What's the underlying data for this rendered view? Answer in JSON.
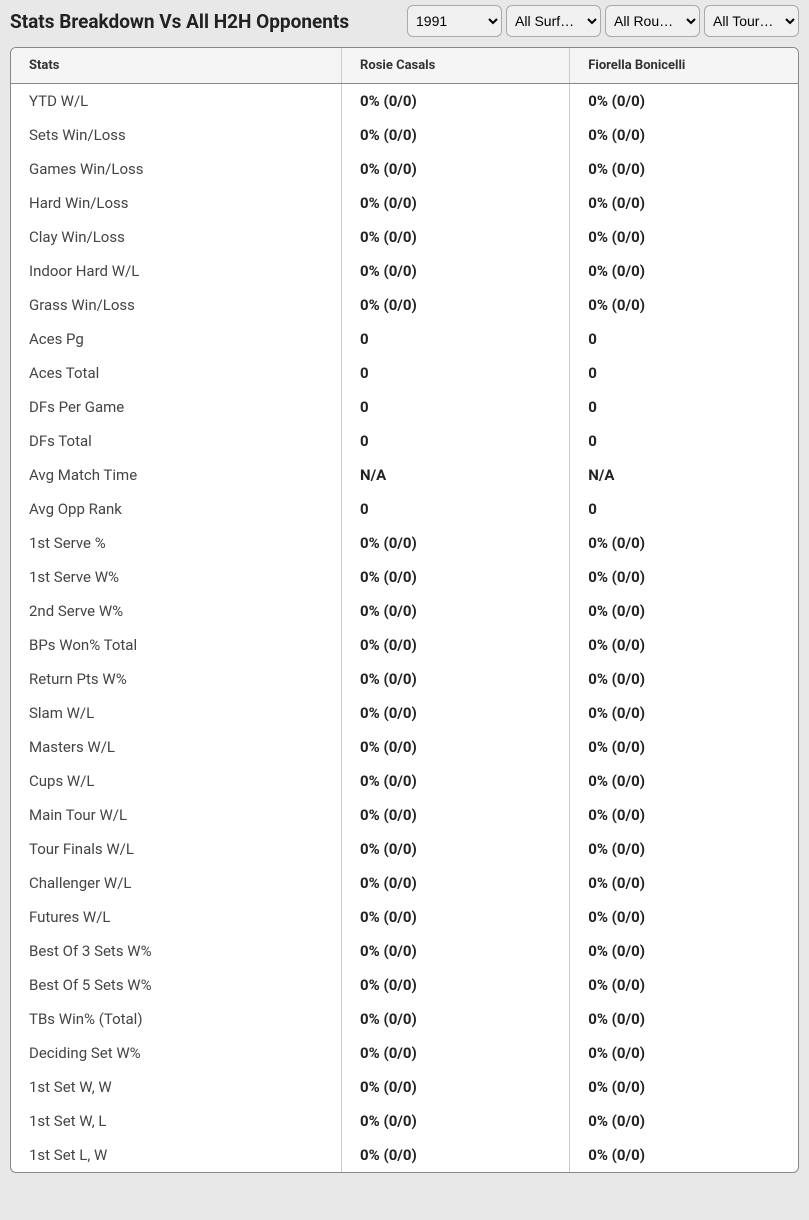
{
  "header": {
    "title": "Stats Breakdown Vs All H2H Opponents"
  },
  "filters": {
    "year": "1991",
    "surface": "All Surf…",
    "round": "All Rou…",
    "tour": "All Tour…"
  },
  "table": {
    "columns": [
      "Stats",
      "Rosie Casals",
      "Fiorella Bonicelli"
    ],
    "rows": [
      {
        "stat": "YTD W/L",
        "p1": "0% (0/0)",
        "p2": "0% (0/0)"
      },
      {
        "stat": "Sets Win/Loss",
        "p1": "0% (0/0)",
        "p2": "0% (0/0)"
      },
      {
        "stat": "Games Win/Loss",
        "p1": "0% (0/0)",
        "p2": "0% (0/0)"
      },
      {
        "stat": "Hard Win/Loss",
        "p1": "0% (0/0)",
        "p2": "0% (0/0)"
      },
      {
        "stat": "Clay Win/Loss",
        "p1": "0% (0/0)",
        "p2": "0% (0/0)"
      },
      {
        "stat": "Indoor Hard W/L",
        "p1": "0% (0/0)",
        "p2": "0% (0/0)"
      },
      {
        "stat": "Grass Win/Loss",
        "p1": "0% (0/0)",
        "p2": "0% (0/0)"
      },
      {
        "stat": "Aces Pg",
        "p1": "0",
        "p2": "0"
      },
      {
        "stat": "Aces Total",
        "p1": "0",
        "p2": "0"
      },
      {
        "stat": "DFs Per Game",
        "p1": "0",
        "p2": "0"
      },
      {
        "stat": "DFs Total",
        "p1": "0",
        "p2": "0"
      },
      {
        "stat": "Avg Match Time",
        "p1": "N/A",
        "p2": "N/A"
      },
      {
        "stat": "Avg Opp Rank",
        "p1": "0",
        "p2": "0"
      },
      {
        "stat": "1st Serve %",
        "p1": "0% (0/0)",
        "p2": "0% (0/0)"
      },
      {
        "stat": "1st Serve W%",
        "p1": "0% (0/0)",
        "p2": "0% (0/0)"
      },
      {
        "stat": "2nd Serve W%",
        "p1": "0% (0/0)",
        "p2": "0% (0/0)"
      },
      {
        "stat": "BPs Won% Total",
        "p1": "0% (0/0)",
        "p2": "0% (0/0)"
      },
      {
        "stat": "Return Pts W%",
        "p1": "0% (0/0)",
        "p2": "0% (0/0)"
      },
      {
        "stat": "Slam W/L",
        "p1": "0% (0/0)",
        "p2": "0% (0/0)"
      },
      {
        "stat": "Masters W/L",
        "p1": "0% (0/0)",
        "p2": "0% (0/0)"
      },
      {
        "stat": "Cups W/L",
        "p1": "0% (0/0)",
        "p2": "0% (0/0)"
      },
      {
        "stat": "Main Tour W/L",
        "p1": "0% (0/0)",
        "p2": "0% (0/0)"
      },
      {
        "stat": "Tour Finals W/L",
        "p1": "0% (0/0)",
        "p2": "0% (0/0)"
      },
      {
        "stat": "Challenger W/L",
        "p1": "0% (0/0)",
        "p2": "0% (0/0)"
      },
      {
        "stat": "Futures W/L",
        "p1": "0% (0/0)",
        "p2": "0% (0/0)"
      },
      {
        "stat": "Best Of 3 Sets W%",
        "p1": "0% (0/0)",
        "p2": "0% (0/0)"
      },
      {
        "stat": "Best Of 5 Sets W%",
        "p1": "0% (0/0)",
        "p2": "0% (0/0)"
      },
      {
        "stat": "TBs Win% (Total)",
        "p1": "0% (0/0)",
        "p2": "0% (0/0)"
      },
      {
        "stat": "Deciding Set W%",
        "p1": "0% (0/0)",
        "p2": "0% (0/0)"
      },
      {
        "stat": "1st Set W, W",
        "p1": "0% (0/0)",
        "p2": "0% (0/0)"
      },
      {
        "stat": "1st Set W, L",
        "p1": "0% (0/0)",
        "p2": "0% (0/0)"
      },
      {
        "stat": "1st Set L, W",
        "p1": "0% (0/0)",
        "p2": "0% (0/0)"
      }
    ]
  }
}
